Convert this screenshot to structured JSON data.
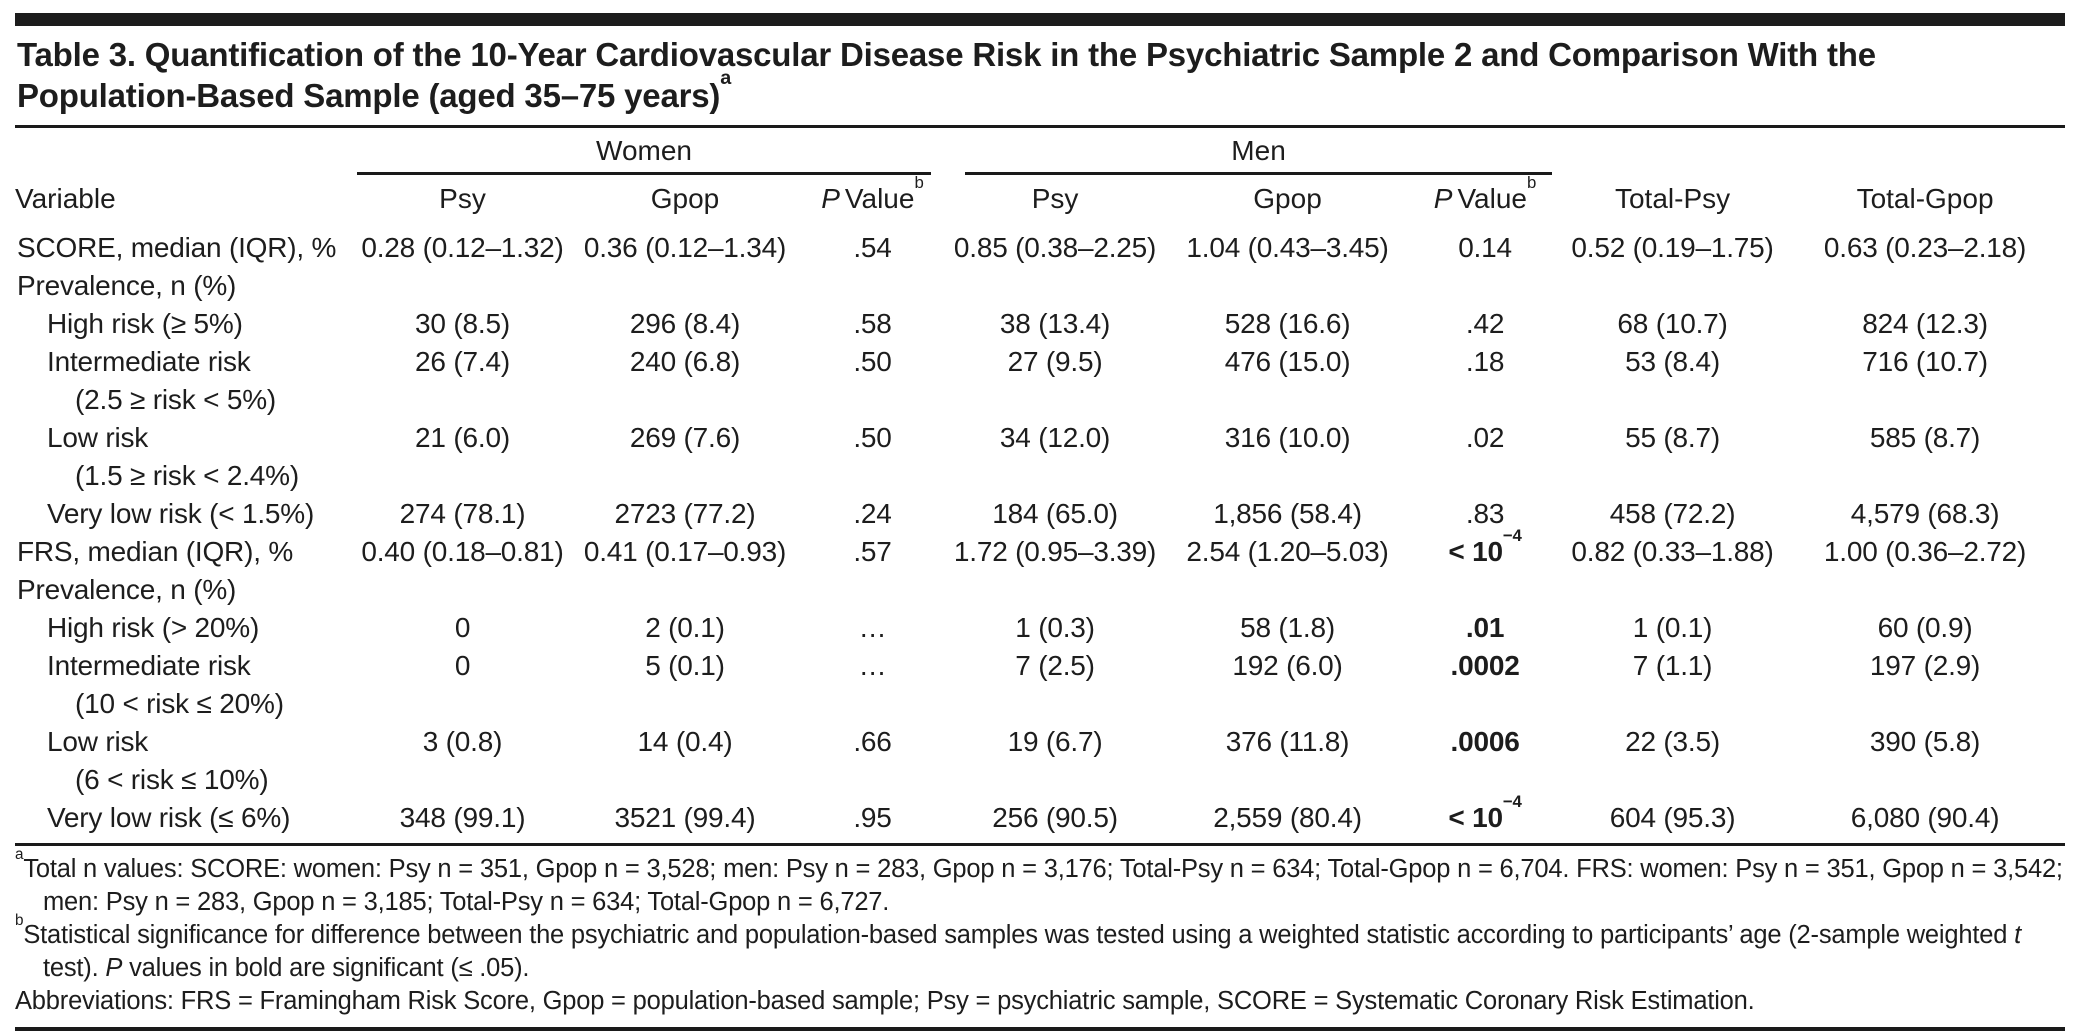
{
  "colors": {
    "background": "#ffffff",
    "text": "#1d1d1d",
    "rule": "#1a1a1a"
  },
  "table": {
    "title": "Table 3. Quantification of the 10-Year Cardiovascular Disease Risk in the Psychiatric Sample 2 and Comparison With the Population-Based Sample (aged 35–75 years)",
    "title_superscript": "a",
    "header": {
      "variable_label": "Variable",
      "groups": [
        {
          "label": "Women"
        },
        {
          "label": "Men"
        }
      ],
      "psy_label": "Psy",
      "gpop_label": "Gpop",
      "p_value_italic": "P",
      "p_value_rest": "Value",
      "p_value_superscript": "b",
      "total_psy_label": "Total-Psy",
      "total_gpop_label": "Total-Gpop"
    },
    "rows": [
      {
        "label": "SCORE, median (IQR), %",
        "indent": 0,
        "cells": [
          "0.28 (0.12–1.32)",
          "0.36 (0.12–1.34)",
          ".54",
          "0.85 (0.38–2.25)",
          "1.04 (0.43–3.45)",
          "0.14",
          "0.52 (0.19–1.75)",
          "0.63 (0.23–2.18)"
        ]
      },
      {
        "label": "Prevalence, n (%)",
        "indent": 0,
        "cells": [
          "",
          "",
          "",
          "",
          "",
          "",
          "",
          ""
        ]
      },
      {
        "label": "High risk (≥ 5%)",
        "indent": 1,
        "cells": [
          "30 (8.5)",
          "296 (8.4)",
          ".58",
          "38 (13.4)",
          "528 (16.6)",
          ".42",
          "68 (10.7)",
          "824 (12.3)"
        ]
      },
      {
        "label": "Intermediate risk",
        "label2": "(2.5 ≥ risk < 5%)",
        "indent": 1,
        "cells": [
          "26 (7.4)",
          "240 (6.8)",
          ".50",
          "27 (9.5)",
          "476 (15.0)",
          ".18",
          "53 (8.4)",
          "716 (10.7)"
        ]
      },
      {
        "label": "Low risk",
        "label2": "(1.5 ≥ risk < 2.4%)",
        "indent": 1,
        "cells": [
          "21 (6.0)",
          "269 (7.6)",
          ".50",
          "34 (12.0)",
          "316 (10.0)",
          ".02",
          "55 (8.7)",
          "585 (8.7)"
        ]
      },
      {
        "label": "Very low risk (< 1.5%)",
        "indent": 1,
        "cells": [
          "274 (78.1)",
          "2723 (77.2)",
          ".24",
          "184 (65.0)",
          "1,856 (58.4)",
          ".83",
          "458 (72.2)",
          "4,579 (68.3)"
        ]
      },
      {
        "label": "FRS, median (IQR), %",
        "indent": 0,
        "cells": [
          "0.40 (0.18–0.81)",
          "0.41 (0.17–0.93)",
          ".57",
          "1.72 (0.95–3.39)",
          "2.54 (1.20–5.03)",
          {
            "text": "< 10",
            "sup": "−4",
            "bold": true
          },
          "0.82 (0.33–1.88)",
          "1.00 (0.36–2.72)"
        ]
      },
      {
        "label": "Prevalence, n (%)",
        "indent": 0,
        "cells": [
          "",
          "",
          "",
          "",
          "",
          "",
          "",
          ""
        ]
      },
      {
        "label": "High risk (> 20%)",
        "indent": 1,
        "cells": [
          "0",
          "2 (0.1)",
          "…",
          "1 (0.3)",
          "58 (1.8)",
          {
            "text": ".01",
            "bold": true
          },
          "1 (0.1)",
          "60 (0.9)"
        ]
      },
      {
        "label": "Intermediate risk",
        "label2": "(10 < risk ≤ 20%)",
        "indent": 1,
        "cells": [
          "0",
          "5 (0.1)",
          "…",
          "7 (2.5)",
          "192 (6.0)",
          {
            "text": ".0002",
            "bold": true
          },
          "7 (1.1)",
          "197 (2.9)"
        ]
      },
      {
        "label": "Low risk",
        "label2": "(6 < risk ≤ 10%)",
        "indent": 1,
        "cells": [
          "3 (0.8)",
          "14 (0.4)",
          ".66",
          "19 (6.7)",
          "376 (11.8)",
          {
            "text": ".0006",
            "bold": true
          },
          "22 (3.5)",
          "390 (5.8)"
        ]
      },
      {
        "label": "Very low risk (≤ 6%)",
        "indent": 1,
        "cells": [
          "348 (99.1)",
          "3521 (99.4)",
          ".95",
          "256 (90.5)",
          "2,559 (80.4)",
          {
            "text": "< 10",
            "sup": "−4",
            "bold": true
          },
          "604 (95.3)",
          "6,080 (90.4)"
        ]
      }
    ]
  },
  "footnotes": [
    {
      "marker": "a",
      "segments": [
        {
          "text": "Total n values: SCORE: women: Psy n = 351, Gpop n = 3,528; men: Psy n = 283, Gpop n = 3,176; Total-Psy n = 634; Total-Gpop n = 6,704. FRS: women: Psy n = 351, Gpop n = 3,542; men: Psy n = 283, Gpop n = 3,185; Total-Psy n = 634; Total-Gpop n = 6,727."
        }
      ]
    },
    {
      "marker": "b",
      "segments": [
        {
          "text": "Statistical significance for difference between the psychiatric and population-based samples was tested using a weighted statistic according to participants’ age (2-sample weighted "
        },
        {
          "text": "t",
          "italic": true
        },
        {
          "text": " test). "
        },
        {
          "text": "P",
          "italic": true
        },
        {
          "text": " values in bold are significant (≤ .05)."
        }
      ]
    },
    {
      "marker": "",
      "segments": [
        {
          "text": "Abbreviations: FRS = Framingham Risk Score, Gpop = population-based sample; Psy = psychiatric sample, SCORE = Systematic Coronary Risk Estimation."
        }
      ]
    }
  ]
}
